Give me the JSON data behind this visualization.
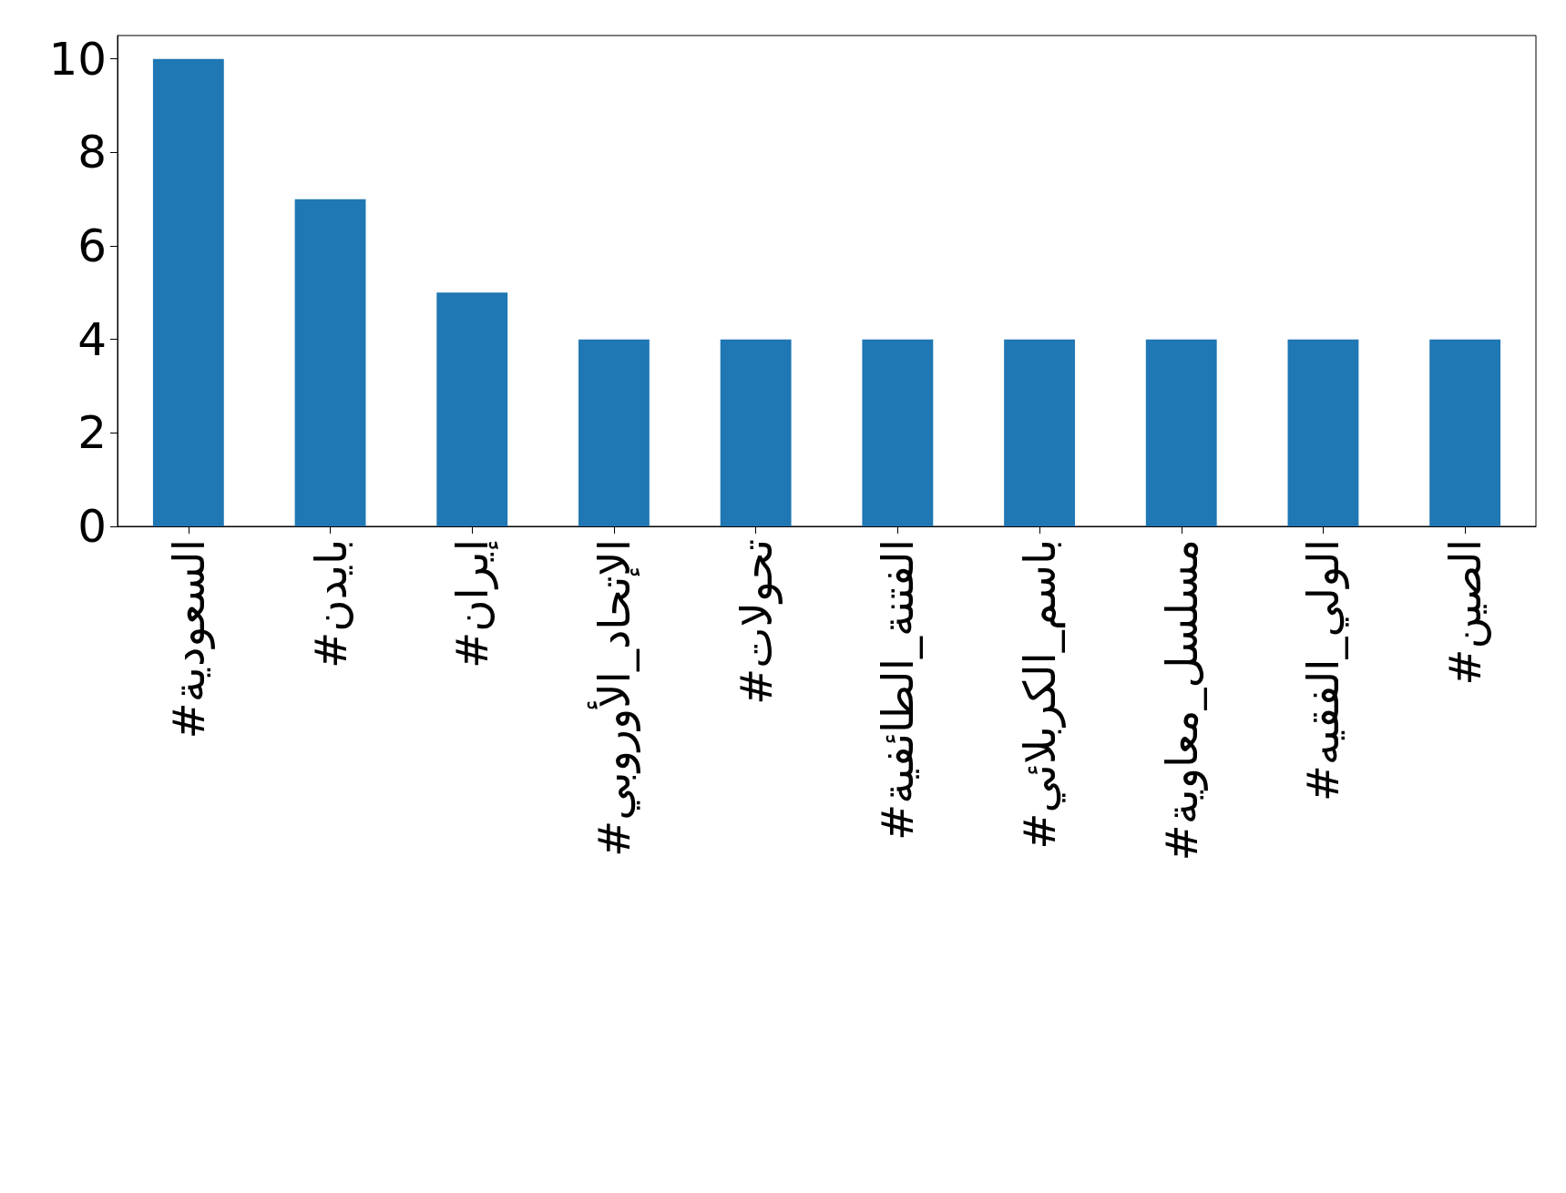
{
  "chart_data": {
    "type": "bar",
    "categories": [
      "#السعودية",
      "#بايدن",
      "#إيران",
      "#الإتحاد_الأوروبي",
      "#تحولات",
      "#الفتنة_الطائفية",
      "#باسم_الكربلائي",
      "#مسلسل_معاوية",
      "#الولي_الفقيه",
      "#الصين"
    ],
    "values": [
      10,
      7,
      5,
      4,
      4,
      4,
      4,
      4,
      4,
      4
    ],
    "color": "#1f77b4",
    "ylim": [
      0,
      10.5
    ],
    "yticks": [
      0,
      2,
      4,
      6,
      8,
      10
    ],
    "grid": false
  }
}
